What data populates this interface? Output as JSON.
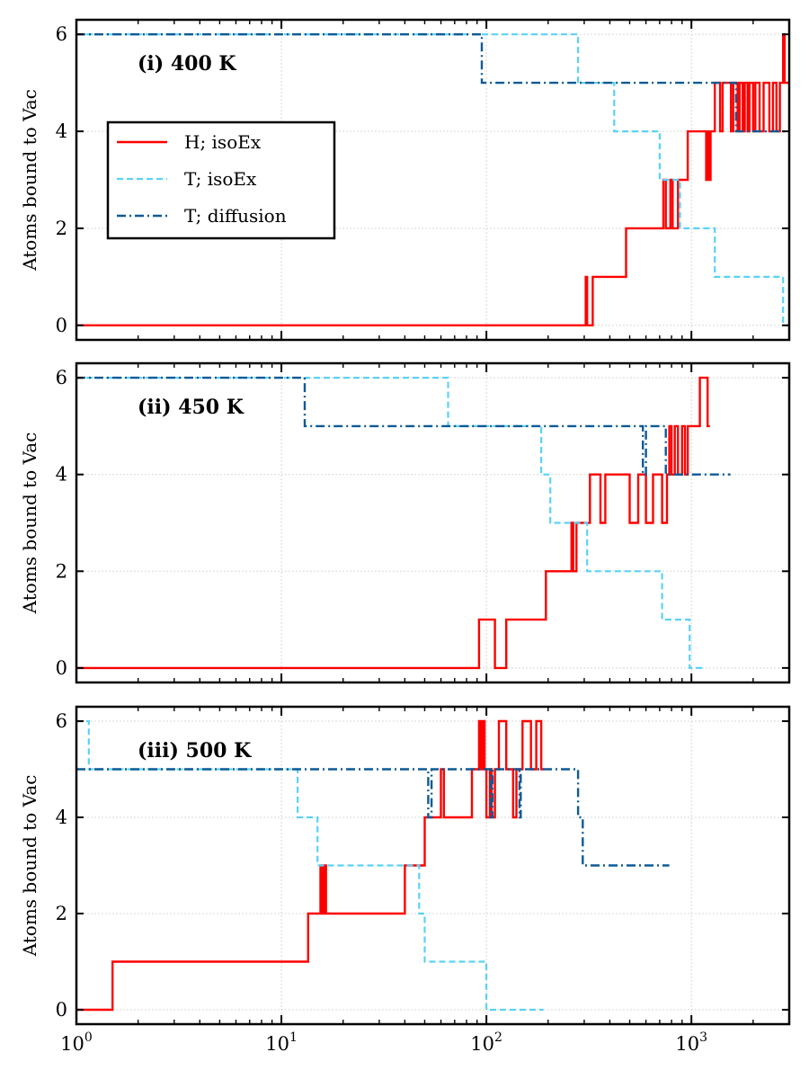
{
  "chart_data": {
    "type": "line",
    "shared_x": true,
    "xscale": "log",
    "xlim": [
      1,
      3000
    ],
    "x_tick_labels": [
      {
        "base": "10",
        "exp": "0",
        "value": 1
      },
      {
        "base": "10",
        "exp": "1",
        "value": 10
      },
      {
        "base": "10",
        "exp": "2",
        "value": 100
      },
      {
        "base": "10",
        "exp": "3",
        "value": 1000
      }
    ],
    "ylim": [
      -0.3,
      6.3
    ],
    "y_ticks": [
      0,
      2,
      4,
      6
    ],
    "ylabel": "Atoms bound to Vac",
    "grid": true,
    "legend": {
      "placement": "upper-left of panel (i)",
      "entries": [
        {
          "label": "H; isoEx",
          "color": "#ff0000",
          "style": "solid"
        },
        {
          "label": "T; isoEx",
          "color": "#5ad2f5",
          "style": "dashed"
        },
        {
          "label": "T; diffusion",
          "color": "#0d5a96",
          "style": "dashdot"
        }
      ]
    },
    "panels": [
      {
        "label": "(i) 400 K",
        "series": [
          {
            "name": "H; isoEx",
            "steps": [
              [
                1,
                0
              ],
              [
                305,
                1
              ],
              [
                310,
                0
              ],
              [
                330,
                1
              ],
              [
                480,
                2
              ],
              [
                730,
                3
              ],
              [
                750,
                2
              ],
              [
                790,
                3
              ],
              [
                810,
                2
              ],
              [
                860,
                3
              ],
              [
                960,
                4
              ],
              [
                1180,
                3
              ],
              [
                1200,
                4
              ],
              [
                1220,
                3
              ],
              [
                1240,
                4
              ],
              [
                1300,
                5
              ],
              [
                1380,
                4
              ],
              [
                1420,
                5
              ],
              [
                1560,
                4
              ],
              [
                1600,
                5
              ],
              [
                1680,
                4
              ],
              [
                1720,
                5
              ],
              [
                1780,
                4
              ],
              [
                1820,
                5
              ],
              [
                1880,
                4
              ],
              [
                1920,
                5
              ],
              [
                2000,
                4
              ],
              [
                2050,
                5
              ],
              [
                2150,
                4
              ],
              [
                2250,
                5
              ],
              [
                2400,
                4
              ],
              [
                2500,
                5
              ],
              [
                2600,
                4
              ],
              [
                2700,
                5
              ],
              [
                2800,
                6
              ],
              [
                2850,
                5
              ],
              [
                3000,
                5
              ]
            ]
          },
          {
            "name": "T; isoEx",
            "steps": [
              [
                1,
                6
              ],
              [
                280,
                5
              ],
              [
                420,
                4
              ],
              [
                700,
                3
              ],
              [
                880,
                2
              ],
              [
                1300,
                1
              ],
              [
                2800,
                0
              ],
              [
                3000,
                0
              ]
            ]
          },
          {
            "name": "T; diffusion",
            "steps": [
              [
                1,
                6
              ],
              [
                95,
                5
              ],
              [
                1650,
                4
              ],
              [
                3000,
                4
              ]
            ]
          }
        ]
      },
      {
        "label": "(ii) 450 K",
        "series": [
          {
            "name": "H; isoEx",
            "steps": [
              [
                1,
                0
              ],
              [
                92,
                1
              ],
              [
                110,
                0
              ],
              [
                125,
                1
              ],
              [
                195,
                2
              ],
              [
                260,
                3
              ],
              [
                265,
                2
              ],
              [
                275,
                3
              ],
              [
                320,
                4
              ],
              [
                360,
                3
              ],
              [
                380,
                4
              ],
              [
                500,
                3
              ],
              [
                550,
                4
              ],
              [
                600,
                3
              ],
              [
                650,
                4
              ],
              [
                720,
                3
              ],
              [
                760,
                4
              ],
              [
                780,
                5
              ],
              [
                800,
                4
              ],
              [
                830,
                5
              ],
              [
                860,
                4
              ],
              [
                900,
                5
              ],
              [
                930,
                4
              ],
              [
                960,
                5
              ],
              [
                1100,
                6
              ],
              [
                1200,
                5
              ],
              [
                1230,
                5
              ]
            ]
          },
          {
            "name": "T; isoEx",
            "steps": [
              [
                1,
                6
              ],
              [
                65,
                5
              ],
              [
                185,
                4
              ],
              [
                205,
                3
              ],
              [
                310,
                2
              ],
              [
                720,
                1
              ],
              [
                980,
                0
              ],
              [
                1150,
                0
              ]
            ]
          },
          {
            "name": "T; diffusion",
            "steps": [
              [
                1,
                6
              ],
              [
                13,
                5
              ],
              [
                580,
                4
              ],
              [
                600,
                5
              ],
              [
                750,
                4
              ],
              [
                1550,
                4
              ]
            ]
          }
        ]
      },
      {
        "label": "(iii) 500 K",
        "series": [
          {
            "name": "H; isoEx",
            "steps": [
              [
                1,
                0
              ],
              [
                1.5,
                1
              ],
              [
                13.5,
                2
              ],
              [
                15.5,
                3
              ],
              [
                15.8,
                2
              ],
              [
                16.2,
                3
              ],
              [
                16.5,
                2
              ],
              [
                40,
                3
              ],
              [
                50,
                4
              ],
              [
                60,
                5
              ],
              [
                62,
                4
              ],
              [
                85,
                5
              ],
              [
                92,
                6
              ],
              [
                94,
                5
              ],
              [
                96,
                6
              ],
              [
                98,
                5
              ],
              [
                100,
                4
              ],
              [
                104,
                5
              ],
              [
                106,
                4
              ],
              [
                110,
                5
              ],
              [
                115,
                6
              ],
              [
                125,
                5
              ],
              [
                135,
                4
              ],
              [
                140,
                5
              ],
              [
                150,
                6
              ],
              [
                165,
                5
              ],
              [
                175,
                6
              ],
              [
                185,
                5
              ],
              [
                190,
                5
              ]
            ]
          },
          {
            "name": "T; isoEx",
            "steps": [
              [
                1,
                6
              ],
              [
                1.15,
                5
              ],
              [
                12,
                4
              ],
              [
                15,
                3
              ],
              [
                47,
                2
              ],
              [
                50,
                1
              ],
              [
                100,
                0
              ],
              [
                190,
                0
              ]
            ]
          },
          {
            "name": "T; diffusion",
            "steps": [
              [
                1,
                5
              ],
              [
                52,
                4
              ],
              [
                54,
                5
              ],
              [
                105,
                4
              ],
              [
                107,
                5
              ],
              [
                145,
                4
              ],
              [
                147,
                5
              ],
              [
                280,
                4
              ],
              [
                295,
                3
              ],
              [
                780,
                3
              ]
            ]
          }
        ]
      }
    ]
  }
}
